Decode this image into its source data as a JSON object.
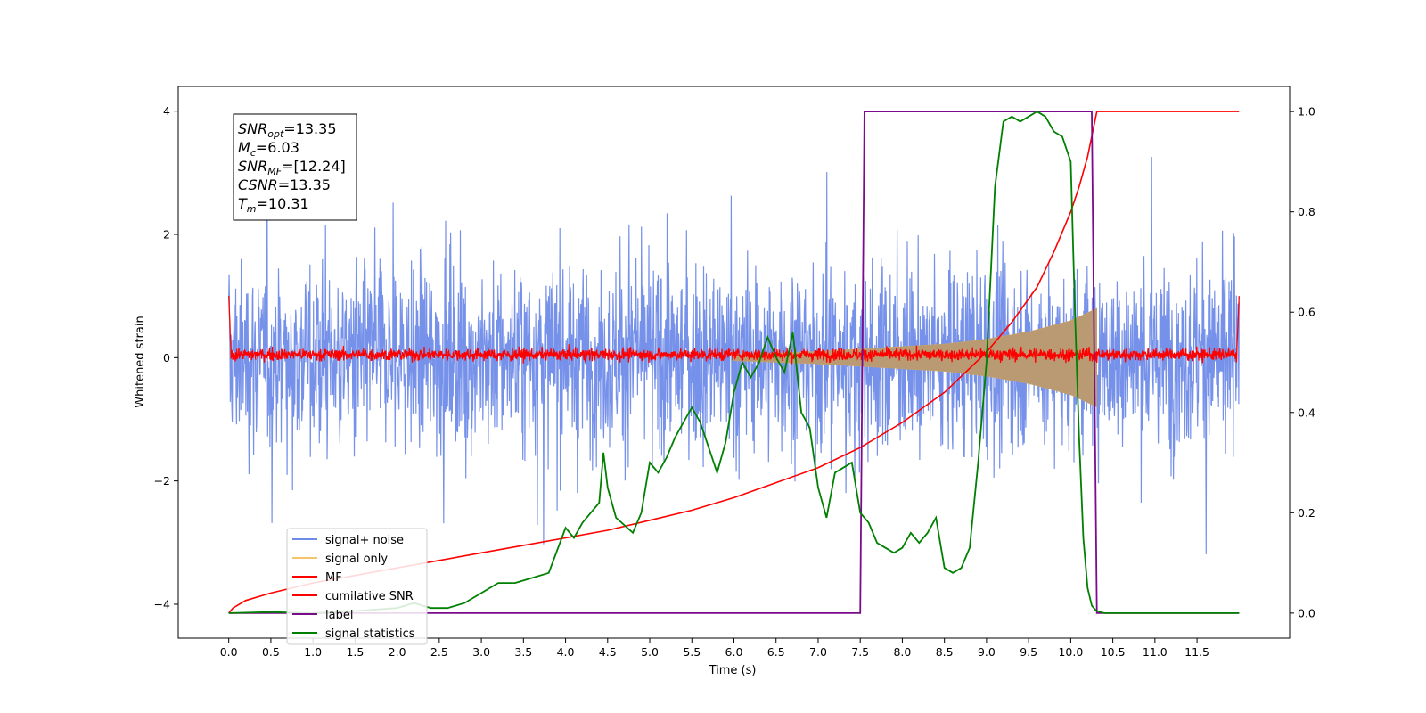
{
  "chart_data": {
    "type": "line",
    "title": "",
    "xlabel": "Time (s)",
    "ylabel": "Whitened strain",
    "y2label": "",
    "xlim": [
      -0.6,
      12.6
    ],
    "ylim": [
      -4.55,
      4.4
    ],
    "y2lim": [
      -0.05,
      1.05
    ],
    "x_ticks": [
      0.0,
      0.5,
      1.0,
      1.5,
      2.0,
      2.5,
      3.0,
      3.5,
      4.0,
      4.5,
      5.0,
      5.5,
      6.0,
      6.5,
      7.0,
      7.5,
      8.0,
      8.5,
      9.0,
      9.5,
      10.0,
      10.5,
      11.0,
      11.5
    ],
    "x_tick_labels": [
      "0.0",
      "0.5",
      "1.0",
      "1.5",
      "2.0",
      "2.5",
      "3.0",
      "3.5",
      "4.0",
      "4.5",
      "5.0",
      "5.5",
      "6.0",
      "6.5",
      "7.0",
      "7.5",
      "8.0",
      "8.5",
      "9.0",
      "9.5",
      "10.0",
      "10.5",
      "11.0",
      "11.5"
    ],
    "y_ticks": [
      -4,
      -2,
      0,
      2,
      4
    ],
    "y_tick_labels": [
      "−4",
      "−2",
      "0",
      "2",
      "4"
    ],
    "y2_ticks": [
      0.0,
      0.2,
      0.4,
      0.6,
      0.8,
      1.0
    ],
    "y2_tick_labels": [
      "0.0",
      "0.2",
      "0.4",
      "0.6",
      "0.8",
      "1.0"
    ],
    "grid": false,
    "legend_position": "lower-left",
    "colors": {
      "signal_noise": "#6f8be8",
      "signal_only": "#f5c46b",
      "mf": "#ff0000",
      "cumulative_snr": "#ff0000",
      "label": "#7b0b8c",
      "signal_statistics": "#008000"
    },
    "legend": [
      {
        "name": "signal+ noise",
        "color": "#6f8be8"
      },
      {
        "name": "signal only",
        "color": "#f5c46b"
      },
      {
        "name": "MF",
        "color": "#ff0000"
      },
      {
        "name": "cumilative SNR",
        "color": "#ff0000"
      },
      {
        "name": "label",
        "color": "#7b0b8c"
      },
      {
        "name": "signal statistics",
        "color": "#008000"
      }
    ],
    "series": [
      {
        "name": "signal+ noise",
        "axis": "left",
        "style": "noise band",
        "x_range": [
          0.0,
          12.0
        ],
        "approx_mean": 0.0,
        "approx_extent": [
          -4.15,
          4.02
        ]
      },
      {
        "name": "signal only",
        "axis": "left",
        "style": "chirp envelope",
        "x_range": [
          6.0,
          10.31
        ],
        "envelope_x": [
          6.0,
          7.0,
          8.0,
          8.5,
          9.0,
          9.5,
          10.0,
          10.31
        ],
        "envelope_amp": [
          0.05,
          0.1,
          0.18,
          0.22,
          0.3,
          0.42,
          0.6,
          0.8
        ]
      },
      {
        "name": "MF",
        "axis": "left",
        "style": "noise band",
        "x_range": [
          0.0,
          12.0
        ],
        "approx_mean": 0.0,
        "approx_extent": [
          -0.15,
          0.3
        ],
        "edge_value": 1.0
      },
      {
        "name": "cumilative SNR",
        "axis": "right",
        "x": [
          0.0,
          0.05,
          0.2,
          0.5,
          1.0,
          1.5,
          2.0,
          2.5,
          3.0,
          3.5,
          4.0,
          4.5,
          5.0,
          5.5,
          6.0,
          6.5,
          7.0,
          7.5,
          8.0,
          8.5,
          9.0,
          9.3,
          9.6,
          9.8,
          10.0,
          10.1,
          10.2,
          10.31,
          10.5,
          11.0,
          11.5,
          12.0
        ],
        "values": [
          0.0,
          0.01,
          0.025,
          0.04,
          0.06,
          0.075,
          0.09,
          0.105,
          0.12,
          0.135,
          0.15,
          0.165,
          0.185,
          0.205,
          0.23,
          0.26,
          0.29,
          0.33,
          0.38,
          0.44,
          0.52,
          0.58,
          0.65,
          0.72,
          0.8,
          0.85,
          0.91,
          1.0,
          1.0,
          1.0,
          1.0,
          1.0
        ]
      },
      {
        "name": "label",
        "axis": "right",
        "x": [
          0.0,
          7.5,
          7.55,
          10.25,
          10.31,
          12.0
        ],
        "values": [
          0.0,
          0.0,
          1.0,
          1.0,
          0.0,
          0.0
        ]
      },
      {
        "name": "signal statistics",
        "axis": "right",
        "x": [
          0.0,
          0.5,
          1.0,
          1.5,
          2.0,
          2.2,
          2.4,
          2.6,
          2.8,
          3.0,
          3.2,
          3.4,
          3.6,
          3.8,
          4.0,
          4.1,
          4.2,
          4.3,
          4.4,
          4.45,
          4.5,
          4.6,
          4.8,
          4.9,
          5.0,
          5.1,
          5.2,
          5.3,
          5.4,
          5.5,
          5.6,
          5.7,
          5.8,
          5.9,
          6.0,
          6.1,
          6.2,
          6.3,
          6.4,
          6.5,
          6.6,
          6.7,
          6.8,
          6.9,
          7.0,
          7.1,
          7.2,
          7.3,
          7.4,
          7.5,
          7.6,
          7.7,
          7.8,
          7.9,
          8.0,
          8.1,
          8.2,
          8.3,
          8.4,
          8.5,
          8.6,
          8.7,
          8.8,
          8.9,
          9.0,
          9.1,
          9.2,
          9.3,
          9.4,
          9.5,
          9.6,
          9.7,
          9.8,
          9.9,
          10.0,
          10.05,
          10.1,
          10.15,
          10.2,
          10.25,
          10.3,
          10.35,
          10.4,
          10.5,
          11.0,
          11.5,
          12.0
        ],
        "values": [
          0.0,
          0.002,
          0.0,
          0.004,
          0.01,
          0.02,
          0.01,
          0.01,
          0.02,
          0.04,
          0.06,
          0.06,
          0.07,
          0.08,
          0.17,
          0.15,
          0.18,
          0.2,
          0.22,
          0.32,
          0.25,
          0.19,
          0.16,
          0.2,
          0.3,
          0.28,
          0.31,
          0.35,
          0.38,
          0.41,
          0.38,
          0.33,
          0.28,
          0.34,
          0.44,
          0.5,
          0.47,
          0.5,
          0.55,
          0.51,
          0.48,
          0.56,
          0.4,
          0.37,
          0.25,
          0.19,
          0.28,
          0.29,
          0.3,
          0.2,
          0.18,
          0.14,
          0.13,
          0.12,
          0.13,
          0.16,
          0.14,
          0.16,
          0.19,
          0.09,
          0.08,
          0.09,
          0.13,
          0.3,
          0.5,
          0.85,
          0.98,
          0.99,
          0.98,
          0.99,
          1.0,
          0.99,
          0.96,
          0.95,
          0.9,
          0.6,
          0.35,
          0.15,
          0.05,
          0.015,
          0.005,
          0.002,
          0.0,
          0.0,
          0.0,
          0.0,
          0.0
        ]
      }
    ],
    "annotations": [
      {
        "base": "SNR",
        "sub": "opt",
        "value": "=13.35"
      },
      {
        "base": "M",
        "sub": "c",
        "value": "=6.03"
      },
      {
        "base": "SNR",
        "sub": "MF",
        "value": "=[12.24]"
      },
      {
        "base": "CSNR",
        "sub": "",
        "value": "=13.35"
      },
      {
        "base": "T",
        "sub": "m",
        "value": "=10.31"
      }
    ]
  }
}
